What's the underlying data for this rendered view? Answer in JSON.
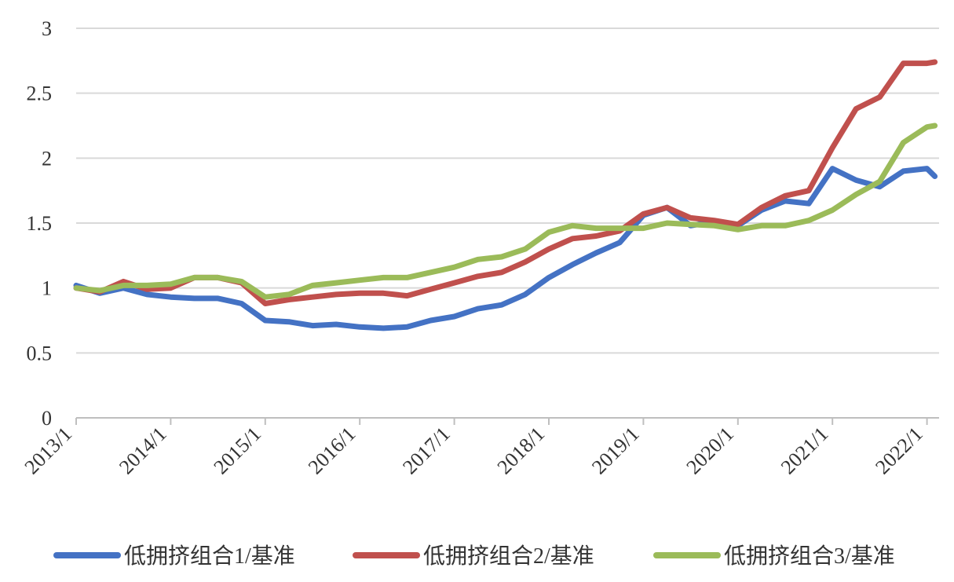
{
  "chart_data": {
    "type": "line",
    "title": "",
    "xlabel": "",
    "ylabel": "",
    "ylim": [
      0,
      3
    ],
    "y_ticks": [
      "0",
      "0.5",
      "1",
      "1.5",
      "2",
      "2.5",
      "3"
    ],
    "x_ticks": [
      "2013/1",
      "2014/1",
      "2015/1",
      "2016/1",
      "2017/1",
      "2018/1",
      "2019/1",
      "2020/1",
      "2021/1",
      "2022/1"
    ],
    "grid": true,
    "legend_position": "bottom",
    "x": [
      "2013/1",
      "2013/4",
      "2013/7",
      "2013/10",
      "2014/1",
      "2014/4",
      "2014/7",
      "2014/10",
      "2015/1",
      "2015/4",
      "2015/7",
      "2015/10",
      "2016/1",
      "2016/4",
      "2016/7",
      "2016/10",
      "2017/1",
      "2017/4",
      "2017/7",
      "2017/10",
      "2018/1",
      "2018/4",
      "2018/7",
      "2018/10",
      "2019/1",
      "2019/4",
      "2019/7",
      "2019/10",
      "2020/1",
      "2020/4",
      "2020/7",
      "2020/10",
      "2021/1",
      "2021/4",
      "2021/7",
      "2021/10",
      "2022/1",
      "2022/2"
    ],
    "series": [
      {
        "name": "低拥挤组合1/基准",
        "color": "#4472C4",
        "values": [
          1.02,
          0.96,
          1.0,
          0.95,
          0.93,
          0.92,
          0.92,
          0.88,
          0.75,
          0.74,
          0.71,
          0.72,
          0.7,
          0.69,
          0.7,
          0.75,
          0.78,
          0.84,
          0.87,
          0.95,
          1.08,
          1.18,
          1.27,
          1.35,
          1.56,
          1.62,
          1.48,
          1.51,
          1.48,
          1.6,
          1.67,
          1.65,
          1.92,
          1.83,
          1.78,
          1.9,
          1.92,
          1.86
        ]
      },
      {
        "name": "低拥挤组合2/基准",
        "color": "#C0504D",
        "values": [
          1.0,
          0.97,
          1.05,
          0.99,
          1.0,
          1.08,
          1.08,
          1.04,
          0.88,
          0.91,
          0.93,
          0.95,
          0.96,
          0.96,
          0.94,
          0.99,
          1.04,
          1.09,
          1.12,
          1.2,
          1.3,
          1.38,
          1.4,
          1.44,
          1.57,
          1.62,
          1.54,
          1.52,
          1.49,
          1.62,
          1.71,
          1.75,
          2.08,
          2.38,
          2.47,
          2.73,
          2.73,
          2.74
        ]
      },
      {
        "name": "低拥挤组合3/基准",
        "color": "#9BBB59",
        "values": [
          1.0,
          0.98,
          1.02,
          1.02,
          1.03,
          1.08,
          1.08,
          1.05,
          0.93,
          0.95,
          1.02,
          1.04,
          1.06,
          1.08,
          1.08,
          1.12,
          1.16,
          1.22,
          1.24,
          1.3,
          1.43,
          1.48,
          1.46,
          1.46,
          1.46,
          1.5,
          1.49,
          1.48,
          1.45,
          1.48,
          1.48,
          1.52,
          1.6,
          1.72,
          1.82,
          2.12,
          2.24,
          2.25
        ]
      }
    ]
  }
}
